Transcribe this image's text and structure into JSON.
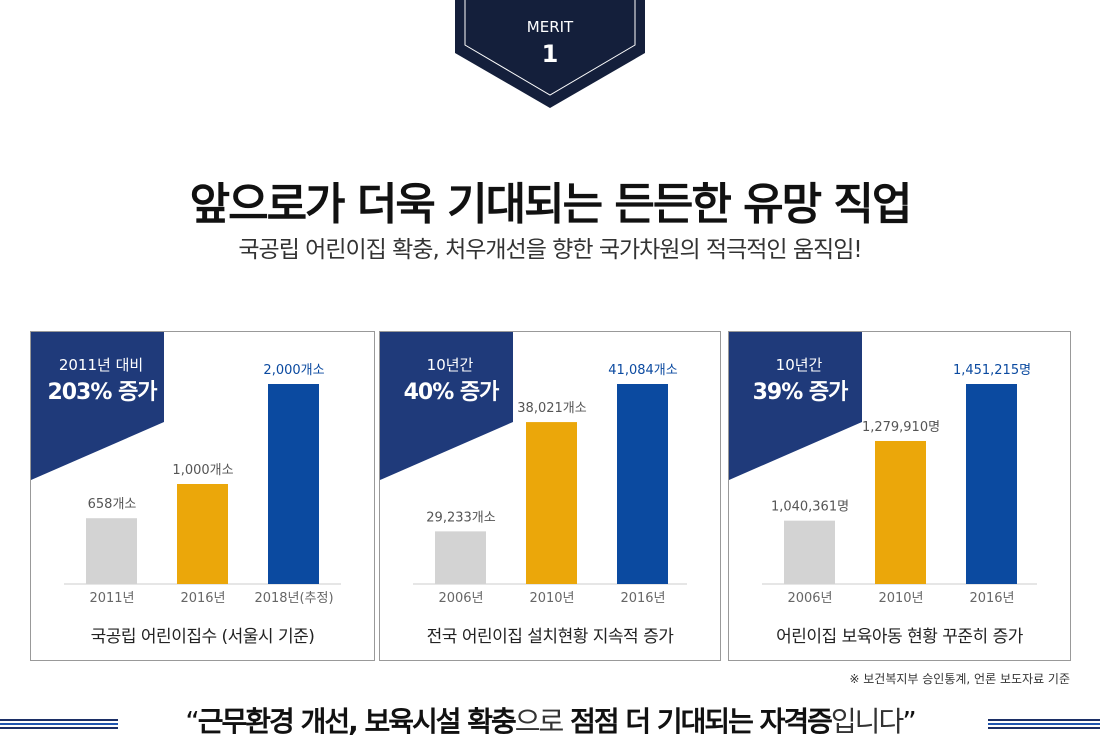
{
  "badge": {
    "label": "MERIT",
    "number": "1",
    "color": "#141f3b"
  },
  "header": {
    "title": "앞으로가 더욱 기대되는 든든한 유망 직업",
    "subtitle": "국공립 어린이집 확충, 처우개선을 향한 국가차원의 적극적인 움직임!"
  },
  "colors": {
    "navy": "#1f3a7a",
    "gray": "#d3d3d3",
    "yellow": "#eba70a",
    "blue": "#0b4aa0",
    "stripe": "#8fb0ea"
  },
  "chart_data": [
    {
      "type": "bar",
      "flag_top": "2011년 대비",
      "flag_big": "203% 증가",
      "categories": [
        "2011년",
        "2016년",
        "2018년(추정)"
      ],
      "values": [
        658,
        1000,
        2000
      ],
      "labels": [
        "658개소",
        "1,000개소",
        "2,000개소"
      ],
      "ylim": [
        0,
        2000
      ],
      "caption": "국공립 어린이집수 (서울시 기준)"
    },
    {
      "type": "bar",
      "flag_top": "10년간",
      "flag_big": "40% 증가",
      "categories": [
        "2006년",
        "2010년",
        "2016년"
      ],
      "values": [
        29233,
        38021,
        41084
      ],
      "labels": [
        "29,233개소",
        "38,021개소",
        "41,084개소"
      ],
      "ylim": [
        25000,
        41084
      ],
      "caption": "전국 어린이집 설치현황 지속적 증가"
    },
    {
      "type": "bar",
      "flag_top": "10년간",
      "flag_big": "39% 증가",
      "categories": [
        "2006년",
        "2010년",
        "2016년"
      ],
      "values": [
        1040361,
        1279910,
        1451215
      ],
      "labels": [
        "1,040,361명",
        "1,279,910명",
        "1,451,215명"
      ],
      "ylim": [
        850000,
        1451215
      ],
      "caption": "어린이집 보육아동 현황 꾸준히 증가"
    }
  ],
  "footer": {
    "source": "※ 보건복지부 승인통계, 언론 보도자료 기준",
    "quote_open": "“",
    "quote_a": "근무환경 개선, 보육시설 확충",
    "quote_b": "으로",
    "quote_c": " 점점 더 기대되는 자격증",
    "quote_d": "입니다",
    "quote_close": "”"
  }
}
